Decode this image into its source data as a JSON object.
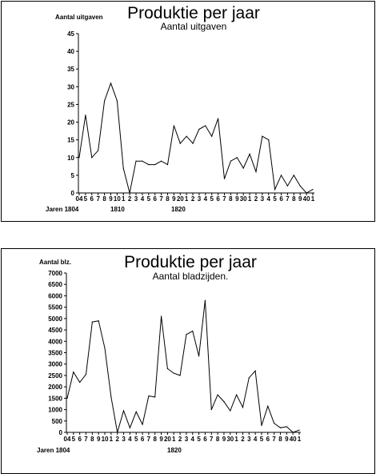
{
  "chart_data": [
    {
      "type": "line",
      "title": "Produktie per jaar",
      "subtitle": "Aantal uitgaven",
      "ylabel": "Aantal uitgaven",
      "ylim": [
        0,
        45
      ],
      "yticks": [
        0,
        5,
        10,
        15,
        20,
        25,
        30,
        35,
        40,
        45
      ],
      "x_tick_labels": [
        "04",
        "5",
        "6",
        "7",
        "8",
        "9",
        "10",
        "1",
        "2",
        "3",
        "4",
        "5",
        "6",
        "7",
        "8",
        "9",
        "20",
        "1",
        "2",
        "3",
        "4",
        "5",
        "6",
        "7",
        "8",
        "9",
        "30",
        "1",
        "2",
        "3",
        "4",
        "5",
        "6",
        "7",
        "8",
        "9",
        "40",
        "1"
      ],
      "x_decade_labels": [
        "Jaren 1804",
        "1810",
        "1820"
      ],
      "grid": false,
      "x": [
        1804,
        1805,
        1806,
        1807,
        1808,
        1809,
        1810,
        1811,
        1812,
        1813,
        1814,
        1815,
        1816,
        1817,
        1818,
        1819,
        1820,
        1821,
        1822,
        1823,
        1824,
        1825,
        1826,
        1827,
        1828,
        1829,
        1830,
        1831,
        1832,
        1833,
        1834,
        1835,
        1836,
        1837,
        1838,
        1839,
        1840,
        1841
      ],
      "values": [
        10,
        22,
        10,
        12,
        26,
        31,
        26,
        7,
        0,
        9,
        9,
        8,
        8,
        9,
        8,
        19,
        14,
        16,
        14,
        18,
        19,
        16,
        21,
        4,
        9,
        10,
        7,
        11,
        6,
        16,
        15,
        1,
        5,
        2,
        5,
        2,
        0,
        1
      ]
    },
    {
      "type": "line",
      "title": "Produktie per jaar",
      "subtitle": "Aantal bladzijden.",
      "ylabel": "Aantal blz.",
      "ylim": [
        0,
        7000
      ],
      "yticks": [
        0,
        500,
        1000,
        1500,
        2000,
        2500,
        3000,
        3500,
        4000,
        4500,
        5000,
        5500,
        6000,
        6500,
        7000
      ],
      "x_tick_labels": [
        "04",
        "5",
        "6",
        "7",
        "8",
        "9",
        "10",
        "1",
        "2",
        "3",
        "4",
        "5",
        "6",
        "7",
        "8",
        "9",
        "20",
        "1",
        "2",
        "3",
        "4",
        "5",
        "6",
        "7",
        "8",
        "9",
        "30",
        "1",
        "2",
        "3",
        "4",
        "5",
        "6",
        "7",
        "8",
        "9",
        "40",
        "1"
      ],
      "x_decade_labels": [
        "Jaren 1804",
        "1820"
      ],
      "grid": false,
      "x": [
        1804,
        1805,
        1806,
        1807,
        1808,
        1809,
        1810,
        1811,
        1812,
        1813,
        1814,
        1815,
        1816,
        1817,
        1818,
        1819,
        1820,
        1821,
        1822,
        1823,
        1824,
        1825,
        1826,
        1827,
        1828,
        1829,
        1830,
        1831,
        1832,
        1833,
        1834,
        1835,
        1836,
        1837,
        1838,
        1839,
        1840,
        1841
      ],
      "values": [
        1500,
        2650,
        2200,
        2550,
        4850,
        4900,
        3700,
        1550,
        0,
        950,
        200,
        900,
        350,
        1600,
        1550,
        5100,
        2800,
        2600,
        2500,
        4300,
        4450,
        3350,
        5800,
        1000,
        1650,
        1350,
        950,
        1650,
        1100,
        2400,
        2700,
        300,
        1150,
        400,
        200,
        250,
        0,
        100
      ]
    }
  ]
}
